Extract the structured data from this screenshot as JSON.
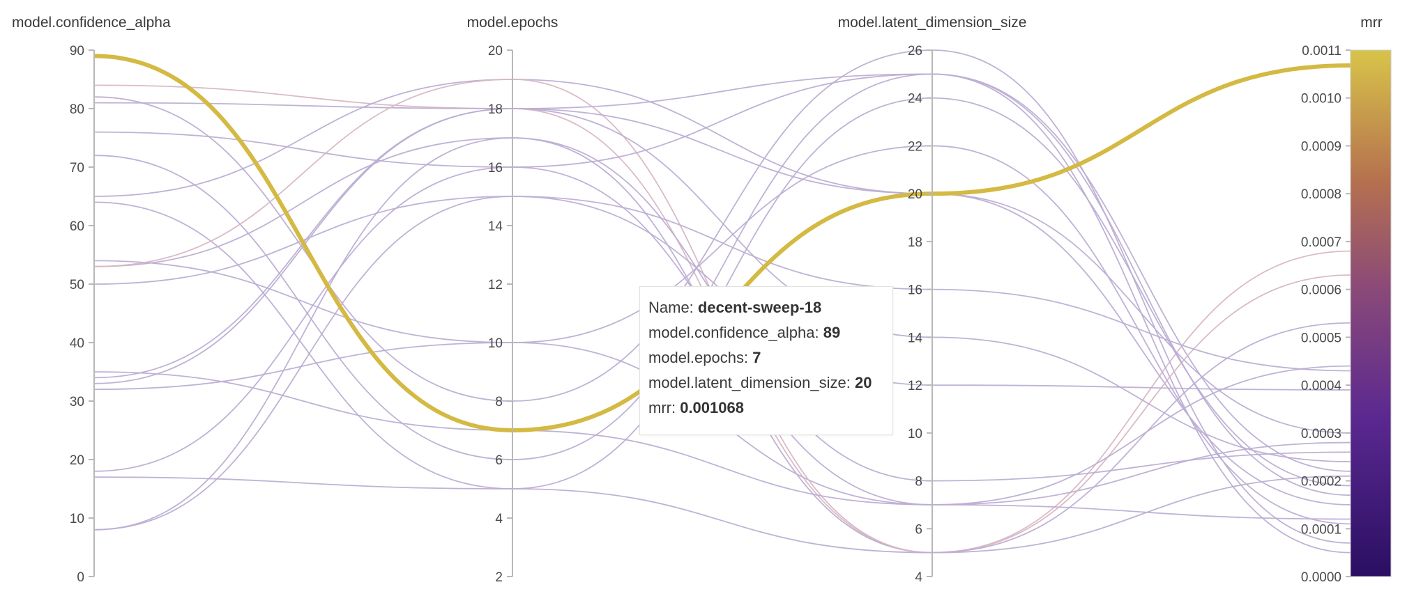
{
  "chart_data": {
    "type": "parallel_coordinates",
    "axes": [
      {
        "name": "model.confidence_alpha",
        "range": [
          0,
          90
        ],
        "ticks": [
          0,
          10,
          20,
          30,
          40,
          50,
          60,
          70,
          80,
          90
        ]
      },
      {
        "name": "model.epochs",
        "range": [
          2,
          20
        ],
        "ticks": [
          2,
          4,
          6,
          8,
          10,
          12,
          14,
          16,
          18,
          20
        ]
      },
      {
        "name": "model.latent_dimension_size",
        "range": [
          4,
          26
        ],
        "ticks": [
          4,
          6,
          8,
          10,
          12,
          14,
          16,
          18,
          20,
          22,
          24,
          26
        ]
      },
      {
        "name": "mrr",
        "range": [
          0,
          0.0011
        ],
        "ticks": [
          "0.0000",
          "0.0001",
          "0.0002",
          "0.0003",
          "0.0004",
          "0.0005",
          "0.0006",
          "0.0007",
          "0.0008",
          "0.0009",
          "0.0010",
          "0.0011"
        ]
      }
    ],
    "colorscale": {
      "min_color": "#2a0f62",
      "mid_color": "#b5704f",
      "max_color": "#d8c449",
      "range": [
        0,
        0.0011
      ]
    },
    "runs": [
      {
        "values": [
          84,
          18,
          5,
          0.00068
        ]
      },
      {
        "values": [
          81,
          18,
          25,
          5e-05
        ]
      },
      {
        "values": [
          82,
          8,
          26,
          7e-05
        ]
      },
      {
        "values": [
          76,
          16,
          7,
          0.00012
        ]
      },
      {
        "values": [
          72,
          6,
          25,
          0.00022
        ]
      },
      {
        "values": [
          65,
          19,
          20,
          0.00015
        ]
      },
      {
        "values": [
          64,
          5,
          24,
          0.00019
        ]
      },
      {
        "values": [
          54,
          10,
          7,
          0.00028
        ]
      },
      {
        "values": [
          53,
          17,
          5,
          0.00021
        ]
      },
      {
        "values": [
          53,
          19,
          5,
          0.00063
        ]
      },
      {
        "values": [
          50,
          15,
          12,
          0.00039
        ]
      },
      {
        "values": [
          35,
          7,
          7,
          0.00044
        ]
      },
      {
        "values": [
          33,
          18,
          14,
          0.00024
        ]
      },
      {
        "values": [
          32,
          10,
          22,
          0.00011
        ]
      },
      {
        "values": [
          34,
          18,
          20,
          0.0003
        ]
      },
      {
        "values": [
          18,
          16,
          25,
          0.00017
        ]
      },
      {
        "values": [
          17,
          5,
          5,
          0.00053
        ]
      },
      {
        "values": [
          8,
          15,
          16,
          0.00043
        ]
      },
      {
        "values": [
          8,
          17,
          8,
          0.00026
        ]
      },
      {
        "values": [
          89,
          7,
          20,
          0.001068
        ],
        "highlight": true
      }
    ]
  },
  "tooltip": {
    "name_label": "Name: ",
    "name_value": "decent-sweep-18",
    "alpha_label": "model.confidence_alpha: ",
    "alpha_value": "89",
    "epochs_label": "model.epochs: ",
    "epochs_value": "7",
    "latent_label": "model.latent_dimension_size: ",
    "latent_value": "20",
    "mrr_label": "mrr: ",
    "mrr_value": "0.001068"
  }
}
